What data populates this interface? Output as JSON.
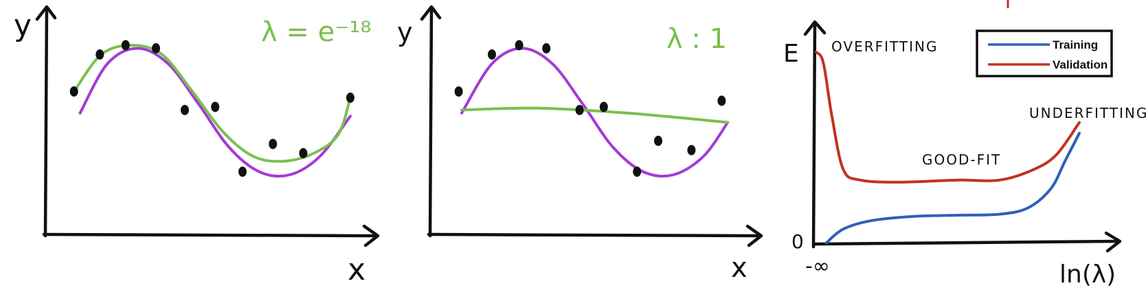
{
  "colors": {
    "ink": "#111111",
    "purple": "#a33bd6",
    "green": "#7bbf4e",
    "blue": "#2f5fb8",
    "red": "#c2321f"
  },
  "chart_data": [
    {
      "type": "scatter",
      "xlabel": "x",
      "ylabel": "y",
      "annotation": "λ = e⁻¹⁸",
      "xlim": [
        0,
        10
      ],
      "ylim": [
        -1.5,
        1.5
      ],
      "points": [
        {
          "x": 0.4,
          "y": 0.35
        },
        {
          "x": 1.25,
          "y": 0.95
        },
        {
          "x": 2.1,
          "y": 1.1
        },
        {
          "x": 3.1,
          "y": 1.05
        },
        {
          "x": 4.05,
          "y": 0.05
        },
        {
          "x": 5.05,
          "y": 0.1
        },
        {
          "x": 5.95,
          "y": -0.95
        },
        {
          "x": 6.95,
          "y": -0.5
        },
        {
          "x": 7.95,
          "y": -0.65
        },
        {
          "x": 9.5,
          "y": 0.25
        }
      ],
      "series": [
        {
          "color": "#a33bd6",
          "x": [
            0.6,
            1.5,
            2.5,
            3.5,
            4.5,
            5.5,
            6.5,
            7.5,
            8.5,
            9.5
          ],
          "y": [
            0.0,
            0.8,
            1.05,
            0.8,
            0.15,
            -0.55,
            -0.95,
            -1.0,
            -0.7,
            -0.05
          ]
        },
        {
          "color": "#7bbf4e",
          "x": [
            0.4,
            1.3,
            2.3,
            3.3,
            4.3,
            5.3,
            6.3,
            7.3,
            8.3,
            9.1,
            9.5
          ],
          "y": [
            0.35,
            0.95,
            1.1,
            0.95,
            0.35,
            -0.3,
            -0.7,
            -0.78,
            -0.65,
            -0.35,
            0.25
          ]
        }
      ]
    },
    {
      "type": "scatter",
      "xlabel": "x",
      "ylabel": "y",
      "annotation": "λ : 1",
      "xlim": [
        0,
        10
      ],
      "ylim": [
        -1.5,
        1.5
      ],
      "points": [
        {
          "x": 0.4,
          "y": 0.35
        },
        {
          "x": 1.5,
          "y": 0.95
        },
        {
          "x": 2.4,
          "y": 1.1
        },
        {
          "x": 3.3,
          "y": 1.05
        },
        {
          "x": 4.4,
          "y": 0.05
        },
        {
          "x": 5.2,
          "y": 0.1
        },
        {
          "x": 6.3,
          "y": -0.95
        },
        {
          "x": 7.0,
          "y": -0.45
        },
        {
          "x": 8.1,
          "y": -0.6
        },
        {
          "x": 9.1,
          "y": 0.2
        }
      ],
      "series": [
        {
          "color": "#a33bd6",
          "x": [
            0.5,
            1.5,
            2.5,
            3.5,
            4.5,
            5.5,
            6.5,
            7.5,
            8.5,
            9.3
          ],
          "y": [
            0.0,
            0.8,
            1.05,
            0.8,
            0.15,
            -0.55,
            -0.95,
            -1.0,
            -0.7,
            -0.15
          ]
        },
        {
          "color": "#7bbf4e",
          "x": [
            0.5,
            3.0,
            6.0,
            9.3
          ],
          "y": [
            0.05,
            0.08,
            0.0,
            -0.15
          ]
        }
      ]
    },
    {
      "type": "line",
      "xlabel": "ln(λ)",
      "ylabel": "E",
      "x_tick_label": "-∞",
      "y_tick_label": "0",
      "xlim": [
        0,
        10
      ],
      "ylim": [
        0,
        10
      ],
      "annotations": [
        "OVERFITTING",
        "GOOD-FIT",
        "UNDERFITTING"
      ],
      "legend": {
        "position": "top-right",
        "entries": [
          "Training",
          "Validation"
        ]
      },
      "series": [
        {
          "name": "Training",
          "color": "#2f5fb8",
          "x": [
            0.4,
            1.0,
            2.0,
            3.5,
            5.0,
            6.5,
            7.5,
            8.3,
            8.8,
            9.3
          ],
          "y": [
            0.05,
            0.7,
            1.1,
            1.3,
            1.35,
            1.4,
            1.7,
            2.6,
            3.9,
            5.2
          ]
        },
        {
          "name": "Validation",
          "color": "#c2321f",
          "x": [
            0.05,
            0.3,
            0.6,
            1.0,
            1.6,
            3.0,
            5.0,
            6.5,
            7.7,
            8.5,
            9.3
          ],
          "y": [
            9.0,
            8.5,
            6.0,
            3.5,
            3.0,
            2.9,
            3.0,
            3.0,
            3.5,
            4.2,
            5.7
          ]
        }
      ]
    }
  ]
}
